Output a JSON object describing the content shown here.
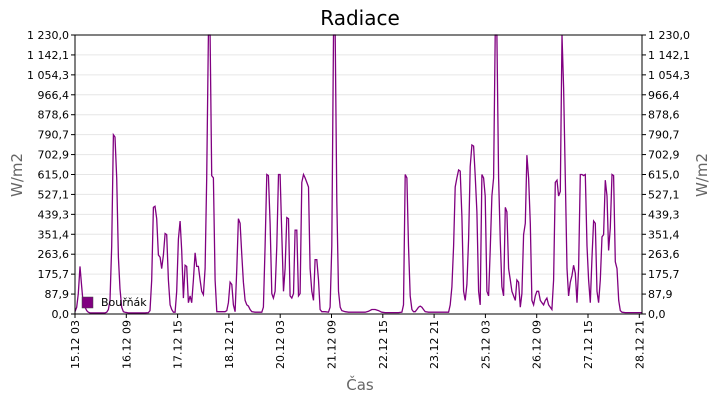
{
  "chart_data": {
    "type": "line",
    "title": "Radiace",
    "xlabel": "Čas",
    "ylabel_left": "W/m2",
    "ylabel_right": "W/m2",
    "ylim": [
      0,
      1230
    ],
    "y_ticks": [
      "0,0",
      "87,9",
      "175,7",
      "263,6",
      "351,4",
      "439,3",
      "527,1",
      "615,0",
      "702,9",
      "790,7",
      "878,6",
      "966,4",
      "1 054,3",
      "1 142,1",
      "1 230,0"
    ],
    "x_ticks": [
      "15.12 03",
      "16.12 09",
      "17.12 15",
      "18.12 21",
      "20.12 03",
      "21.12 09",
      "22.12 15",
      "23.12 21",
      "25.12 03",
      "26.12 09",
      "27.12 15",
      "28.12 21"
    ],
    "x_range_hours": [
      0,
      340
    ],
    "grid": true,
    "legend_position": "bottom-left",
    "series": [
      {
        "name": "Bouřňák",
        "color": "#800080",
        "points": [
          [
            0,
            10
          ],
          [
            1,
            30
          ],
          [
            2,
            90
          ],
          [
            3,
            210
          ],
          [
            4,
            120
          ],
          [
            5,
            40
          ],
          [
            6,
            30
          ],
          [
            7,
            15
          ],
          [
            8,
            8
          ],
          [
            9,
            5
          ],
          [
            10,
            5
          ],
          [
            12,
            5
          ],
          [
            14,
            5
          ],
          [
            16,
            5
          ],
          [
            18,
            5
          ],
          [
            19,
            8
          ],
          [
            20,
            20
          ],
          [
            21,
            60
          ],
          [
            22,
            300
          ],
          [
            23,
            790
          ],
          [
            24,
            780
          ],
          [
            25,
            600
          ],
          [
            26,
            250
          ],
          [
            27,
            110
          ],
          [
            28,
            30
          ],
          [
            29,
            10
          ],
          [
            30,
            8
          ],
          [
            32,
            5
          ],
          [
            34,
            5
          ],
          [
            36,
            5
          ],
          [
            38,
            5
          ],
          [
            40,
            5
          ],
          [
            42,
            5
          ],
          [
            44,
            6
          ],
          [
            45,
            15
          ],
          [
            46,
            150
          ],
          [
            47,
            470
          ],
          [
            48,
            475
          ],
          [
            49,
            420
          ],
          [
            50,
            260
          ],
          [
            51,
            250
          ],
          [
            52,
            200
          ],
          [
            53,
            260
          ],
          [
            54,
            355
          ],
          [
            55,
            350
          ],
          [
            56,
            150
          ],
          [
            57,
            40
          ],
          [
            58,
            20
          ],
          [
            59,
            8
          ],
          [
            60,
            8
          ],
          [
            61,
            100
          ],
          [
            62,
            330
          ],
          [
            63,
            410
          ],
          [
            64,
            280
          ],
          [
            65,
            70
          ],
          [
            66,
            215
          ],
          [
            67,
            210
          ],
          [
            68,
            50
          ],
          [
            69,
            80
          ],
          [
            70,
            50
          ],
          [
            71,
            150
          ],
          [
            72,
            270
          ],
          [
            73,
            210
          ],
          [
            74,
            210
          ],
          [
            75,
            150
          ],
          [
            76,
            100
          ],
          [
            77,
            85
          ],
          [
            78,
            200
          ],
          [
            79,
            600
          ],
          [
            80,
            1230
          ],
          [
            81,
            1230
          ],
          [
            82,
            610
          ],
          [
            83,
            600
          ],
          [
            84,
            150
          ],
          [
            85,
            10
          ],
          [
            86,
            10
          ],
          [
            88,
            10
          ],
          [
            90,
            10
          ],
          [
            91,
            15
          ],
          [
            92,
            50
          ],
          [
            93,
            140
          ],
          [
            94,
            130
          ],
          [
            95,
            40
          ],
          [
            96,
            10
          ],
          [
            97,
            200
          ],
          [
            98,
            420
          ],
          [
            99,
            400
          ],
          [
            100,
            260
          ],
          [
            101,
            140
          ],
          [
            102,
            60
          ],
          [
            103,
            40
          ],
          [
            104,
            35
          ],
          [
            105,
            20
          ],
          [
            106,
            10
          ],
          [
            108,
            8
          ],
          [
            110,
            8
          ],
          [
            112,
            8
          ],
          [
            113,
            30
          ],
          [
            114,
            300
          ],
          [
            115,
            615
          ],
          [
            116,
            610
          ],
          [
            117,
            400
          ],
          [
            118,
            90
          ],
          [
            119,
            70
          ],
          [
            120,
            100
          ],
          [
            121,
            300
          ],
          [
            122,
            615
          ],
          [
            123,
            615
          ],
          [
            124,
            350
          ],
          [
            125,
            100
          ],
          [
            126,
            200
          ],
          [
            127,
            425
          ],
          [
            128,
            420
          ],
          [
            129,
            80
          ],
          [
            130,
            70
          ],
          [
            131,
            90
          ],
          [
            132,
            370
          ],
          [
            133,
            370
          ],
          [
            134,
            80
          ],
          [
            135,
            90
          ],
          [
            136,
            580
          ],
          [
            137,
            615
          ],
          [
            138,
            600
          ],
          [
            139,
            580
          ],
          [
            140,
            560
          ],
          [
            141,
            200
          ],
          [
            142,
            100
          ],
          [
            143,
            60
          ],
          [
            144,
            240
          ],
          [
            145,
            240
          ],
          [
            146,
            150
          ],
          [
            147,
            20
          ],
          [
            148,
            10
          ],
          [
            150,
            10
          ],
          [
            152,
            8
          ],
          [
            153,
            30
          ],
          [
            154,
            300
          ],
          [
            155,
            1230
          ],
          [
            156,
            1230
          ],
          [
            157,
            500
          ],
          [
            158,
            100
          ],
          [
            159,
            30
          ],
          [
            160,
            15
          ],
          [
            162,
            10
          ],
          [
            164,
            8
          ],
          [
            166,
            8
          ],
          [
            168,
            8
          ],
          [
            170,
            8
          ],
          [
            172,
            8
          ],
          [
            174,
            8
          ],
          [
            176,
            12
          ],
          [
            178,
            20
          ],
          [
            180,
            20
          ],
          [
            182,
            15
          ],
          [
            184,
            8
          ],
          [
            186,
            6
          ],
          [
            188,
            6
          ],
          [
            190,
            6
          ],
          [
            192,
            6
          ],
          [
            194,
            6
          ],
          [
            196,
            8
          ],
          [
            197,
            40
          ],
          [
            198,
            615
          ],
          [
            199,
            600
          ],
          [
            200,
            300
          ],
          [
            201,
            80
          ],
          [
            202,
            20
          ],
          [
            203,
            10
          ],
          [
            204,
            10
          ],
          [
            205,
            20
          ],
          [
            206,
            30
          ],
          [
            207,
            35
          ],
          [
            208,
            30
          ],
          [
            209,
            20
          ],
          [
            210,
            10
          ],
          [
            212,
            8
          ],
          [
            214,
            8
          ],
          [
            216,
            8
          ],
          [
            218,
            8
          ],
          [
            220,
            8
          ],
          [
            222,
            8
          ],
          [
            224,
            8
          ],
          [
            225,
            40
          ],
          [
            226,
            120
          ],
          [
            227,
            300
          ],
          [
            228,
            560
          ],
          [
            229,
            600
          ],
          [
            230,
            635
          ],
          [
            231,
            630
          ],
          [
            232,
            430
          ],
          [
            233,
            100
          ],
          [
            234,
            60
          ],
          [
            235,
            130
          ],
          [
            236,
            330
          ],
          [
            237,
            650
          ],
          [
            238,
            745
          ],
          [
            239,
            740
          ],
          [
            240,
            610
          ],
          [
            241,
            450
          ],
          [
            242,
            100
          ],
          [
            243,
            40
          ],
          [
            244,
            615
          ],
          [
            245,
            600
          ],
          [
            246,
            520
          ],
          [
            247,
            100
          ],
          [
            248,
            80
          ],
          [
            249,
            280
          ],
          [
            250,
            520
          ],
          [
            251,
            600
          ],
          [
            252,
            1230
          ],
          [
            253,
            1230
          ],
          [
            254,
            600
          ],
          [
            255,
            320
          ],
          [
            256,
            120
          ],
          [
            257,
            80
          ],
          [
            258,
            470
          ],
          [
            259,
            450
          ],
          [
            260,
            200
          ],
          [
            261,
            150
          ],
          [
            262,
            100
          ],
          [
            263,
            80
          ],
          [
            264,
            60
          ],
          [
            265,
            150
          ],
          [
            266,
            140
          ],
          [
            267,
            30
          ],
          [
            268,
            90
          ],
          [
            269,
            350
          ],
          [
            270,
            400
          ],
          [
            271,
            700
          ],
          [
            272,
            600
          ],
          [
            273,
            400
          ],
          [
            274,
            60
          ],
          [
            275,
            40
          ],
          [
            276,
            80
          ],
          [
            277,
            100
          ],
          [
            278,
            100
          ],
          [
            279,
            60
          ],
          [
            280,
            50
          ],
          [
            281,
            40
          ],
          [
            282,
            60
          ],
          [
            283,
            70
          ],
          [
            284,
            40
          ],
          [
            285,
            30
          ],
          [
            286,
            20
          ],
          [
            287,
            150
          ],
          [
            288,
            580
          ],
          [
            289,
            590
          ],
          [
            290,
            520
          ],
          [
            291,
            540
          ],
          [
            292,
            1230
          ],
          [
            293,
            1000
          ],
          [
            294,
            600
          ],
          [
            295,
            200
          ],
          [
            296,
            80
          ],
          [
            297,
            140
          ],
          [
            298,
            170
          ],
          [
            299,
            215
          ],
          [
            300,
            180
          ],
          [
            301,
            50
          ],
          [
            302,
            200
          ],
          [
            303,
            615
          ],
          [
            304,
            615
          ],
          [
            305,
            610
          ],
          [
            306,
            615
          ],
          [
            307,
            300
          ],
          [
            308,
            150
          ],
          [
            309,
            50
          ],
          [
            310,
            250
          ],
          [
            311,
            410
          ],
          [
            312,
            400
          ],
          [
            313,
            100
          ],
          [
            314,
            50
          ],
          [
            315,
            150
          ],
          [
            316,
            340
          ],
          [
            317,
            350
          ],
          [
            318,
            590
          ],
          [
            319,
            520
          ],
          [
            320,
            280
          ],
          [
            321,
            380
          ],
          [
            322,
            615
          ],
          [
            323,
            610
          ],
          [
            324,
            230
          ],
          [
            325,
            200
          ],
          [
            326,
            60
          ],
          [
            327,
            15
          ],
          [
            328,
            8
          ],
          [
            330,
            6
          ],
          [
            332,
            6
          ],
          [
            334,
            6
          ],
          [
            336,
            6
          ],
          [
            338,
            6
          ],
          [
            340,
            6
          ]
        ]
      }
    ]
  }
}
